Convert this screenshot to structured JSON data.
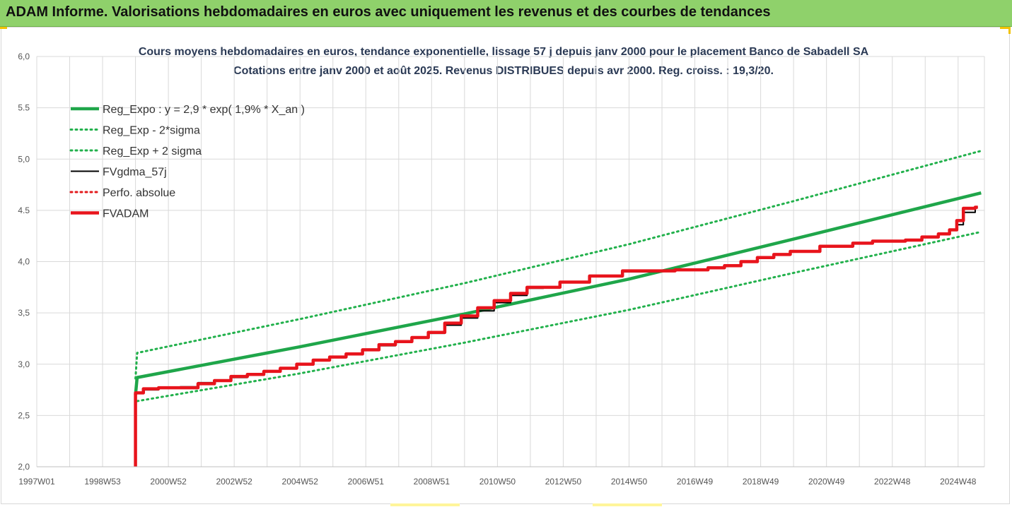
{
  "header": {
    "title": "ADAM Informe. Valorisations hebdomadaires en euros avec uniquement les revenus et des courbes de tendances"
  },
  "colors": {
    "header_bg": "#8fd16b",
    "trend": "#1fa64a",
    "trend_band": "#22b14c",
    "fvgdma": "#000000",
    "perfo": "#e31a1c",
    "fvadam": "#e8141c",
    "grid": "#d9d9d9",
    "accent": "#f2c200"
  },
  "chart_data": {
    "type": "line",
    "title": "Cours moyens hebdomadaires en euros, tendance exponentielle, lissage 57 j depuis janv 2000 pour le placement Banco de Sabadell SA",
    "subtitle": "Cotations entre janv 2000 et août 2025. Revenus DISTRIBUES depuis avr 2000. Reg. croiss. : 19,3/20.",
    "xlabel": "",
    "ylabel": "",
    "ylim": [
      2.0,
      6.0
    ],
    "xlim": [
      1997.0,
      2025.8
    ],
    "y_ticks": [
      "2,0",
      "2,5",
      "3,0",
      "3,5",
      "4,0",
      "4.5",
      "5,0",
      "5.5",
      "6,0"
    ],
    "y_tick_values": [
      2.0,
      2.5,
      3.0,
      3.5,
      4.0,
      4.5,
      5.0,
      5.5,
      6.0
    ],
    "x_ticks": [
      "1997W01",
      "1998W53",
      "2000W52",
      "2002W52",
      "2004W52",
      "2006W51",
      "2008W51",
      "2010W50",
      "2012W50",
      "2014W50",
      "2016W49",
      "2018W49",
      "2020W49",
      "2022W48",
      "2024W48"
    ],
    "x_tick_values": [
      1997.0,
      1999.0,
      2001.0,
      2003.0,
      2005.0,
      2007.0,
      2009.0,
      2011.0,
      2013.0,
      2015.0,
      2017.0,
      2019.0,
      2021.0,
      2023.0,
      2025.0
    ],
    "grid": true,
    "legend_position": "top-left",
    "series": [
      {
        "name": "Reg_Expo : y = 2,9 * exp( 1,9% *  X_an )",
        "style": "solid-thick",
        "color": "#1fa64a",
        "x": [
          2000.0,
          2000.05,
          2005.0,
          2010.0,
          2015.0,
          2020.0,
          2025.7
        ],
        "y": [
          2.7,
          2.87,
          3.17,
          3.49,
          3.83,
          4.22,
          4.67
        ]
      },
      {
        "name": "Reg_Exp - 2*sigma",
        "style": "dotted",
        "color": "#22b14c",
        "x": [
          2000.05,
          2005.0,
          2010.0,
          2015.0,
          2020.0,
          2025.7
        ],
        "y": [
          2.64,
          2.91,
          3.21,
          3.53,
          3.89,
          4.29
        ]
      },
      {
        "name": "Reg_Exp + 2 sigma",
        "style": "dotted",
        "color": "#22b14c",
        "x": [
          2000.0,
          2000.05,
          2005.0,
          2010.0,
          2015.0,
          2020.0,
          2025.7
        ],
        "y": [
          2.86,
          3.11,
          3.44,
          3.79,
          4.17,
          4.59,
          5.08
        ]
      },
      {
        "name": "FVgdma_57j",
        "style": "solid",
        "color": "#000000",
        "x": [
          2000.0,
          2000.0,
          2000.3,
          2000.8,
          2001.5,
          2002.0,
          2002.5,
          2003.0,
          2003.5,
          2004.0,
          2004.5,
          2005.0,
          2005.5,
          2006.0,
          2006.5,
          2007.0,
          2007.5,
          2008.0,
          2008.5,
          2009.0,
          2009.5,
          2010.0,
          2010.5,
          2011.0,
          2011.5,
          2012.0,
          2012.5,
          2013.0,
          2014.0,
          2015.0,
          2015.5,
          2016.0,
          2016.5,
          2017.0,
          2017.5,
          2018.0,
          2018.5,
          2019.0,
          2019.5,
          2020.0,
          2021.0,
          2022.0,
          2022.5,
          2023.0,
          2023.5,
          2024.0,
          2024.5,
          2024.8,
          2025.0,
          2025.2,
          2025.6
        ],
        "y": [
          2.0,
          2.72,
          2.75,
          2.77,
          2.78,
          2.82,
          2.84,
          2.87,
          2.9,
          2.93,
          2.96,
          3.0,
          3.04,
          3.07,
          3.1,
          3.14,
          3.18,
          3.22,
          3.26,
          3.3,
          3.38,
          3.45,
          3.52,
          3.6,
          3.67,
          3.74,
          3.75,
          3.8,
          3.86,
          3.9,
          3.9,
          3.91,
          3.92,
          3.92,
          3.94,
          3.96,
          4.0,
          4.04,
          4.07,
          4.1,
          4.15,
          4.18,
          4.2,
          4.2,
          4.21,
          4.24,
          4.27,
          4.31,
          4.36,
          4.48,
          4.53
        ]
      },
      {
        "name": "Perfo. absolue",
        "style": "dotted",
        "color": "#e31a1c",
        "x": [],
        "y": []
      },
      {
        "name": "FVADAM",
        "style": "solid-thick",
        "color": "#e8141c",
        "x": [
          2000.0,
          2000.0,
          2000.3,
          2000.8,
          2001.5,
          2002.0,
          2002.5,
          2003.0,
          2003.5,
          2004.0,
          2004.5,
          2005.0,
          2005.5,
          2006.0,
          2006.5,
          2007.0,
          2007.5,
          2008.0,
          2008.5,
          2009.0,
          2009.5,
          2010.0,
          2010.5,
          2011.0,
          2011.5,
          2012.0,
          2012.5,
          2013.0,
          2014.0,
          2015.0,
          2015.5,
          2016.0,
          2016.5,
          2017.0,
          2017.5,
          2018.0,
          2018.5,
          2019.0,
          2019.5,
          2020.0,
          2021.0,
          2022.0,
          2022.5,
          2023.0,
          2023.5,
          2024.0,
          2024.5,
          2024.8,
          2025.0,
          2025.2,
          2025.6
        ],
        "y": [
          2.0,
          2.72,
          2.76,
          2.77,
          2.77,
          2.81,
          2.84,
          2.88,
          2.9,
          2.93,
          2.96,
          3.0,
          3.04,
          3.07,
          3.1,
          3.14,
          3.19,
          3.22,
          3.26,
          3.31,
          3.4,
          3.47,
          3.55,
          3.62,
          3.69,
          3.75,
          3.75,
          3.8,
          3.86,
          3.91,
          3.91,
          3.91,
          3.92,
          3.92,
          3.94,
          3.96,
          4.0,
          4.04,
          4.07,
          4.1,
          4.15,
          4.18,
          4.2,
          4.2,
          4.21,
          4.24,
          4.27,
          4.31,
          4.4,
          4.52,
          4.53
        ]
      }
    ]
  }
}
